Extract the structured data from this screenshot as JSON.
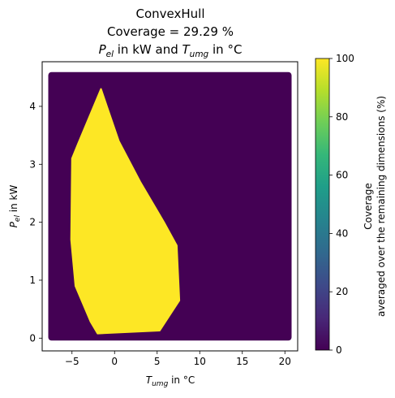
{
  "chart_data": {
    "type": "heatmap",
    "title_lines": [
      "ConvexHull",
      "Coverage = 29.29 %"
    ],
    "title_units_line": {
      "p": "P",
      "p_sub": "el",
      "mid": " in kW and ",
      "t": "T",
      "t_sub": "umg",
      "end": " in °C"
    },
    "xlabel": {
      "main": "T",
      "sub": "umg",
      "rest": " in °C"
    },
    "ylabel": {
      "main": "P",
      "sub": "el",
      "rest": " in kW"
    },
    "xlim": [
      -8.5,
      21.5
    ],
    "ylim": [
      -0.22,
      4.77
    ],
    "xticks": [
      -5,
      0,
      5,
      10,
      15,
      20
    ],
    "xtick_labels": [
      "−5",
      "0",
      "5",
      "10",
      "15",
      "20"
    ],
    "yticks": [
      0,
      1,
      2,
      3,
      4
    ],
    "ytick_labels": [
      "0",
      "1",
      "2",
      "3",
      "4"
    ],
    "grid_x_range": [
      -7.5,
      20.5
    ],
    "grid_y_range": [
      0.0,
      4.55
    ],
    "background_value": 0,
    "covered_value": 100,
    "covered_region": [
      [
        -1.6,
        4.3
      ],
      [
        -0.9,
        4.0
      ],
      [
        0.5,
        3.4
      ],
      [
        3.0,
        2.7
      ],
      [
        5.8,
        2.0
      ],
      [
        7.3,
        1.6
      ],
      [
        7.6,
        0.65
      ],
      [
        5.3,
        0.13
      ],
      [
        -2.0,
        0.08
      ],
      [
        -2.8,
        0.28
      ],
      [
        -4.6,
        0.9
      ],
      [
        -5.1,
        1.7
      ],
      [
        -5.0,
        3.1
      ],
      [
        -4.3,
        3.35
      ]
    ],
    "colorbar": {
      "label_lines": [
        "Coverage",
        "averaged over the remaining dimensions (%)"
      ],
      "range": [
        0,
        100
      ],
      "ticks": [
        0,
        20,
        40,
        60,
        80,
        100
      ],
      "tick_labels": [
        "0",
        "20",
        "40",
        "60",
        "80",
        "100"
      ]
    },
    "colormap": "viridis",
    "colors": {
      "low": "#440154",
      "high": "#fde725",
      "stops": [
        "#440154",
        "#482878",
        "#3e4989",
        "#31688e",
        "#26828e",
        "#1f9e89",
        "#35b779",
        "#6ece58",
        "#b5de2b",
        "#fde725"
      ]
    }
  }
}
